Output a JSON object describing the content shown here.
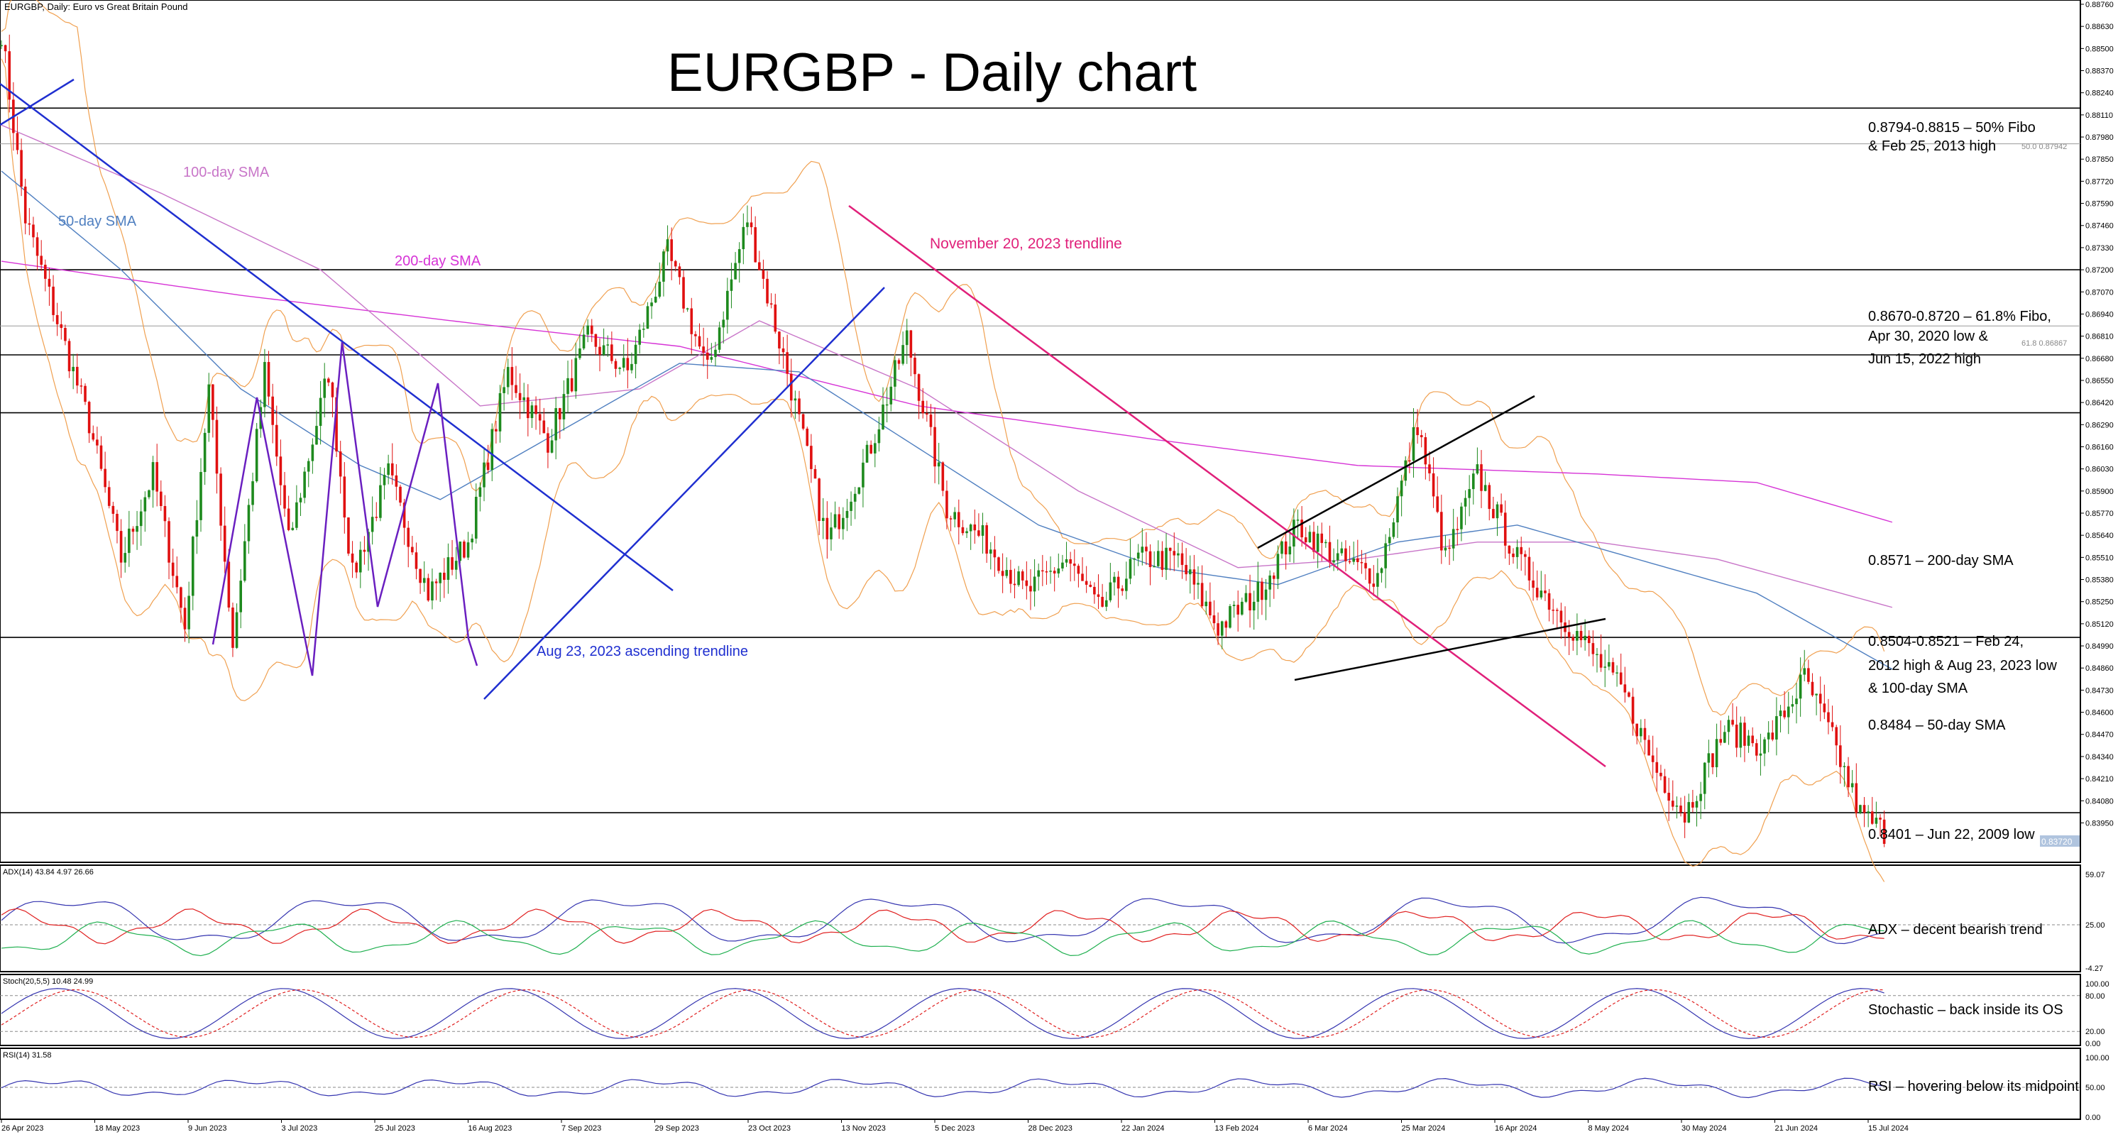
{
  "header": {
    "symbol_line": "EURGBP, Daily:  Euro vs Great Britain Pound",
    "title": "EURGBP - Daily chart"
  },
  "colors": {
    "bull": "#1e8a1e",
    "bear": "#e01010",
    "sma50": "#4f7fc0",
    "sma100": "#c875c8",
    "sma200": "#d633d6",
    "bollinger": "#f0a050",
    "trend_blue": "#1f2fd0",
    "trend_pink": "#e0207a",
    "zigzag": "#6a1fc0",
    "level": "#000000",
    "adx": "#3535b0",
    "di_plus": "#20b050",
    "di_minus": "#e02020"
  },
  "chart_data": {
    "type": "candlestick",
    "instrument": "EURGBP",
    "timeframe": "Daily",
    "title": "EURGBP - Daily chart",
    "ylim": [
      0.8376,
      0.8876
    ],
    "y_ticks": [
      "0.88760",
      "0.88630",
      "0.88500",
      "0.88370",
      "0.88240",
      "0.88110",
      "0.87980",
      "0.87850",
      "0.87720",
      "0.87590",
      "0.87460",
      "0.87330",
      "0.87200",
      "0.87070",
      "0.86940",
      "0.86810",
      "0.86680",
      "0.86550",
      "0.86420",
      "0.86290",
      "0.86160",
      "0.86030",
      "0.85900",
      "0.85770",
      "0.85640",
      "0.85510",
      "0.85380",
      "0.85250",
      "0.85120",
      "0.84990",
      "0.84860",
      "0.84730",
      "0.84600",
      "0.84470",
      "0.84340",
      "0.84210",
      "0.84080",
      "0.83950"
    ],
    "x_ticks": [
      "26 Apr 2023",
      "18 May 2023",
      "9 Jun 2023",
      "3 Jul 2023",
      "25 Jul 2023",
      "16 Aug 2023",
      "7 Sep 2023",
      "29 Sep 2023",
      "23 Oct 2023",
      "13 Nov 2023",
      "5 Dec 2023",
      "28 Dec 2023",
      "22 Jan 2024",
      "13 Feb 2024",
      "6 Mar 2024",
      "25 Mar 2024",
      "16 Apr 2024",
      "8 May 2024",
      "30 May 2024",
      "21 Jun 2024",
      "15 Jul 2024"
    ],
    "price_anchors": [
      [
        0,
        0.886
      ],
      [
        6,
        0.875
      ],
      [
        14,
        0.869
      ],
      [
        22,
        0.863
      ],
      [
        30,
        0.855
      ],
      [
        38,
        0.86
      ],
      [
        46,
        0.851
      ],
      [
        52,
        0.865
      ],
      [
        58,
        0.85
      ],
      [
        66,
        0.866
      ],
      [
        72,
        0.856
      ],
      [
        82,
        0.866
      ],
      [
        88,
        0.854
      ],
      [
        97,
        0.86
      ],
      [
        107,
        0.853
      ],
      [
        117,
        0.856
      ],
      [
        127,
        0.866
      ],
      [
        137,
        0.862
      ],
      [
        147,
        0.868
      ],
      [
        157,
        0.866
      ],
      [
        167,
        0.873
      ],
      [
        177,
        0.866
      ],
      [
        187,
        0.875
      ],
      [
        197,
        0.866
      ],
      [
        207,
        0.856
      ],
      [
        217,
        0.861
      ],
      [
        227,
        0.868
      ],
      [
        237,
        0.858
      ],
      [
        247,
        0.856
      ],
      [
        257,
        0.853
      ],
      [
        267,
        0.855
      ],
      [
        275,
        0.852
      ],
      [
        285,
        0.855
      ],
      [
        295,
        0.855
      ],
      [
        305,
        0.851
      ],
      [
        315,
        0.853
      ],
      [
        325,
        0.857
      ],
      [
        335,
        0.855
      ],
      [
        345,
        0.854
      ],
      [
        355,
        0.863
      ],
      [
        362,
        0.855
      ],
      [
        370,
        0.86
      ],
      [
        380,
        0.855
      ],
      [
        390,
        0.852
      ],
      [
        397,
        0.85
      ],
      [
        407,
        0.847
      ],
      [
        414,
        0.843
      ],
      [
        422,
        0.84
      ],
      [
        432,
        0.845
      ],
      [
        442,
        0.844
      ],
      [
        452,
        0.848
      ],
      [
        458,
        0.845
      ],
      [
        466,
        0.84
      ],
      [
        472,
        0.839
      ]
    ],
    "series": [
      {
        "name": "200-day SMA",
        "values": [
          [
            0,
            0.8725
          ],
          [
            60,
            0.8705
          ],
          [
            120,
            0.8688
          ],
          [
            170,
            0.8675
          ],
          [
            230,
            0.864
          ],
          [
            290,
            0.862
          ],
          [
            340,
            0.8605
          ],
          [
            400,
            0.86
          ],
          [
            440,
            0.8595
          ],
          [
            475,
            0.8571
          ]
        ]
      },
      {
        "name": "100-day SMA",
        "values": [
          [
            0,
            0.8805
          ],
          [
            40,
            0.8765
          ],
          [
            80,
            0.872
          ],
          [
            120,
            0.864
          ],
          [
            160,
            0.865
          ],
          [
            190,
            0.869
          ],
          [
            230,
            0.865
          ],
          [
            270,
            0.859
          ],
          [
            310,
            0.8545
          ],
          [
            340,
            0.855
          ],
          [
            370,
            0.856
          ],
          [
            400,
            0.856
          ],
          [
            430,
            0.855
          ],
          [
            475,
            0.8521
          ]
        ]
      },
      {
        "name": "50-day SMA",
        "values": [
          [
            0,
            0.8778
          ],
          [
            30,
            0.872
          ],
          [
            60,
            0.865
          ],
          [
            90,
            0.8605
          ],
          [
            110,
            0.8585
          ],
          [
            140,
            0.8625
          ],
          [
            170,
            0.8665
          ],
          [
            200,
            0.866
          ],
          [
            230,
            0.8615
          ],
          [
            260,
            0.857
          ],
          [
            290,
            0.8545
          ],
          [
            320,
            0.8535
          ],
          [
            350,
            0.856
          ],
          [
            380,
            0.857
          ],
          [
            410,
            0.855
          ],
          [
            440,
            0.853
          ],
          [
            475,
            0.8484
          ]
        ]
      }
    ],
    "levels": [
      {
        "y": 0.8815,
        "label_lines": [
          "0.8794-0.8815 – 50% Fibo",
          "& Feb 25, 2013 high"
        ]
      },
      {
        "y": 0.8794,
        "label_lines": []
      },
      {
        "y": 0.872,
        "label_lines": [
          "0.8670-0.8720 – 61.8% Fibo,",
          "Apr 30, 2020 low &",
          "Jun 15, 2022 high"
        ]
      },
      {
        "y": 0.8687,
        "label_lines": []
      },
      {
        "y": 0.867,
        "label_lines": []
      },
      {
        "y": 0.8636,
        "label_lines": []
      },
      {
        "y": 0.8504,
        "label_lines": []
      },
      {
        "y": 0.8401,
        "label_lines": [
          "0.8401 – Jun 22, 2009 low"
        ]
      }
    ],
    "annotations": [
      {
        "text": "100-day SMA",
        "color": "sma100"
      },
      {
        "text": "50-day SMA",
        "color": "sma50"
      },
      {
        "text": "200-day SMA",
        "color": "sma200"
      },
      {
        "text": "November 20, 2023 trendline",
        "color": "trend_pink"
      },
      {
        "text": "Aug 23, 2023 ascending trendline",
        "color": "trend_blue"
      }
    ],
    "right_notes": [
      {
        "text": "0.8571 – 200-day SMA"
      },
      {
        "lines": [
          "0.8504-0.8521 – Feb 24,",
          "2012 high & Aug 23, 2023 low",
          "& 100-day SMA"
        ]
      },
      {
        "text": "0.8484 – 50-day SMA"
      }
    ],
    "fibo_tags": [
      "50.0  0.87942",
      "61.8  0.86867"
    ],
    "last_price": "0.83720",
    "panels": [
      {
        "name": "ADX",
        "header": "ADX(14) 43.84 4.97 26.66",
        "note": "ADX – decent bearish trend",
        "ticks": [
          "59.07",
          "25.00",
          "-4.27"
        ],
        "ylim": [
          -4.27,
          59.07
        ]
      },
      {
        "name": "Stochastic",
        "header": "Stoch(20,5,5) 10.48 24.99",
        "note": "Stochastic – back inside its OS",
        "ticks": [
          "100.00",
          "80.00",
          "20.00",
          "0.00"
        ],
        "ylim": [
          0,
          100
        ]
      },
      {
        "name": "RSI",
        "header": "RSI(14) 31.58",
        "note": "RSI – hovering below its midpoint",
        "ticks": [
          "100.00",
          "50.00",
          "0.00"
        ],
        "ylim": [
          0,
          100
        ]
      }
    ]
  }
}
